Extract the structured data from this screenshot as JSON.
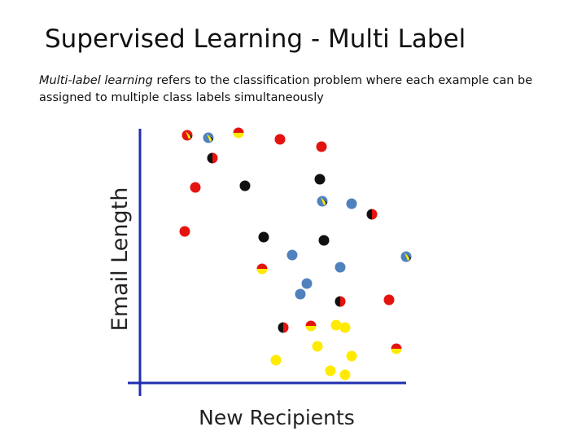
{
  "title": "Supervised Learning - Multi Label",
  "body": {
    "emphasis": "Multi-label learning",
    "text": " refers to the classification problem where each example can be assigned to multiple class labels simultaneously"
  },
  "axis_labels": {
    "y": "Email Length",
    "x": "New Recipients"
  }
}
